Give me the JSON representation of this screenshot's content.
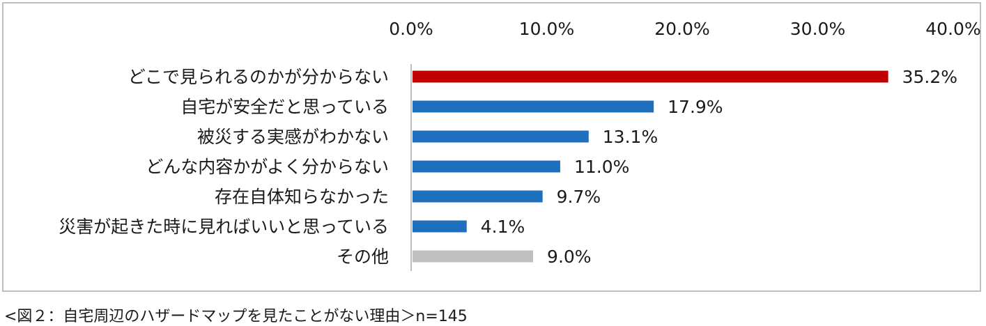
{
  "chart_data": {
    "type": "bar",
    "orientation": "horizontal",
    "categories": [
      "どこで見られるのかが分からない",
      "自宅が安全だと思っている",
      "被災する実感がわかない",
      "どんな内容かがよく分からない",
      "存在自体知らなかった",
      "災害が起きた時に見ればいいと思っている",
      "その他"
    ],
    "values": [
      35.2,
      17.9,
      13.1,
      11.0,
      9.7,
      4.1,
      9.0
    ],
    "data_labels": [
      "35.2%",
      "17.9%",
      "13.1%",
      "11.0%",
      "9.7%",
      "4.1%",
      "9.0%"
    ],
    "bar_colors": [
      "#c00000",
      "#1f6fbf",
      "#1f6fbf",
      "#1f6fbf",
      "#1f6fbf",
      "#1f6fbf",
      "#bfbfbf"
    ],
    "x_ticks": [
      0,
      10,
      20,
      30,
      40
    ],
    "x_tick_labels": [
      "0.0%",
      "10.0%",
      "20.0%",
      "30.0%",
      "40.0%"
    ],
    "xlim": [
      0,
      40
    ],
    "axis_position": "top",
    "grid": false,
    "title": "",
    "xlabel": "",
    "ylabel": ""
  },
  "caption": "<図２：自宅周辺のハザードマップを見たことがない理由＞n=145",
  "colors": {
    "axis": "#bfbfbf",
    "frame": "#bfbfbf"
  }
}
